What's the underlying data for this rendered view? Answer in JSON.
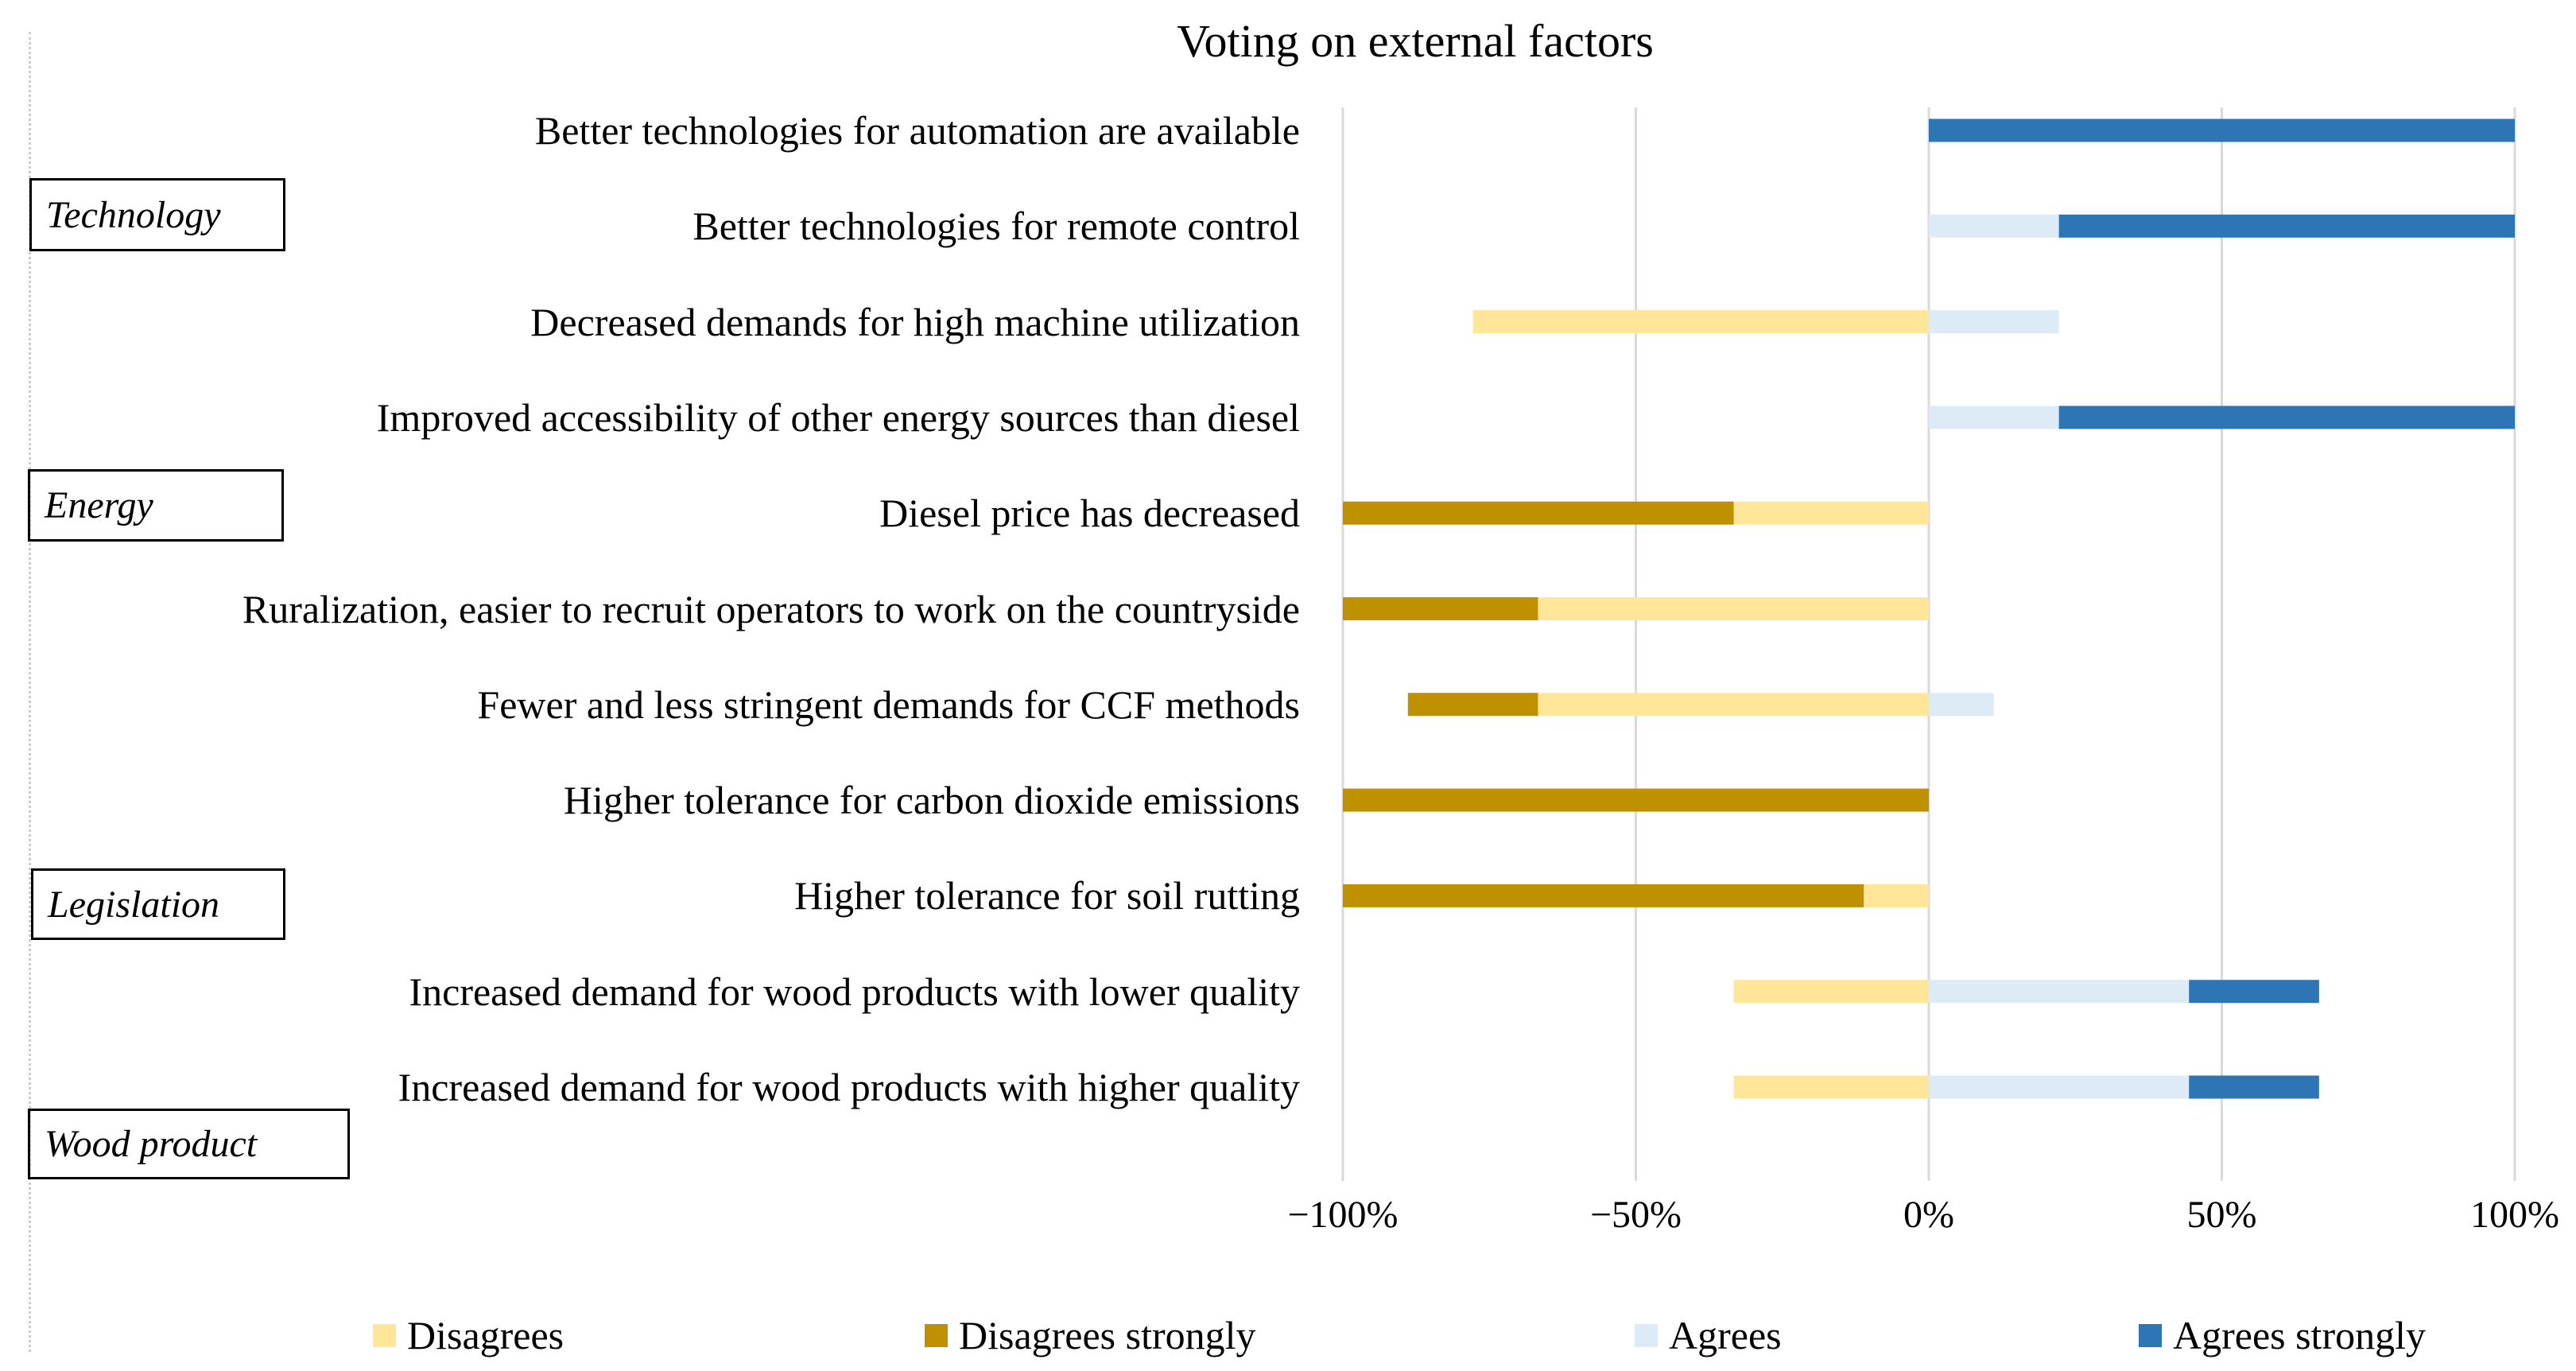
{
  "chart_data": {
    "type": "bar",
    "orientation": "horizontal-diverging-stacked",
    "title": "Voting on external factors",
    "xlim": [
      -100,
      100
    ],
    "x_ticks": [
      "−100%",
      "−50%",
      "0%",
      "50%",
      "100%"
    ],
    "x_tick_values": [
      -100,
      -50,
      0,
      50,
      100
    ],
    "grid": true,
    "legend_position": "bottom",
    "categories": [
      "Better technologies for automation are available",
      "Better technologies for remote control",
      "Decreased demands for high machine utilization",
      "Improved accessibility of other energy sources than diesel",
      "Diesel price has decreased",
      "Ruralization, easier to recruit operators to work on the countryside",
      "Fewer and less stringent demands for CCF methods",
      "Higher tolerance for carbon dioxide emissions",
      "Higher tolerance for soil rutting",
      "Increased demand for wood products with lower quality",
      "Increased demand for wood products with higher quality"
    ],
    "series": [
      {
        "name": "Disagrees",
        "color": "#FFE699",
        "values": [
          0,
          0,
          77.8,
          0,
          33.3,
          66.7,
          66.7,
          0,
          11.1,
          33.3,
          33.3
        ]
      },
      {
        "name": "Disagrees strongly",
        "color": "#BF9000",
        "values": [
          0,
          0,
          0,
          0,
          66.7,
          33.3,
          22.2,
          100,
          88.9,
          0,
          0
        ]
      },
      {
        "name": "Agrees",
        "color": "#DDEBF7",
        "values": [
          0,
          22.2,
          22.2,
          22.2,
          0,
          0,
          11.1,
          0,
          0,
          44.4,
          44.4
        ]
      },
      {
        "name": "Agrees strongly",
        "color": "#2E75B6",
        "values": [
          100,
          77.8,
          0,
          77.8,
          0,
          0,
          0,
          0,
          0,
          22.2,
          22.2
        ]
      }
    ],
    "groups": [
      "Technology",
      "Energy",
      "Legislation",
      "Wood product"
    ]
  }
}
